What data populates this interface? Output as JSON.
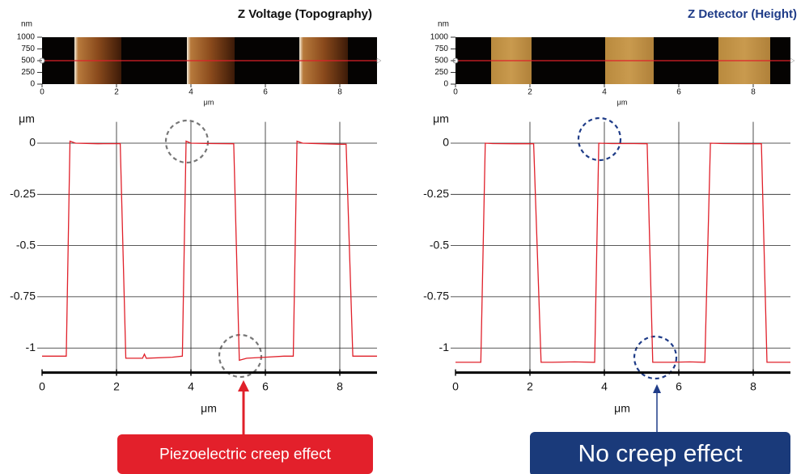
{
  "chart_data": [
    {
      "type": "image",
      "title": "Z Voltage (Topography)",
      "ylabel": "nm",
      "xlabel": "μm",
      "xlim": [
        0,
        9
      ],
      "xticks": [
        0,
        2,
        4,
        6,
        8
      ],
      "ylim": [
        0,
        1000
      ],
      "yticks": [
        0,
        250,
        500,
        750,
        1000
      ]
    },
    {
      "type": "line",
      "ylabel": "μm",
      "xlabel": "μm",
      "color": "#e0202a",
      "grid": true,
      "xlim": [
        0,
        9
      ],
      "xticks": [
        0,
        2,
        4,
        6,
        8
      ],
      "ylim": [
        -1.12,
        0.12
      ],
      "yticks": [
        0,
        -0.25,
        -0.5,
        -0.75,
        -1
      ],
      "x": [
        0,
        0.65,
        0.75,
        0.9,
        1.5,
        2.1,
        2.25,
        2.4,
        2.7,
        2.75,
        2.8,
        3.5,
        3.77,
        3.87,
        4.0,
        4.6,
        5.15,
        5.3,
        5.5,
        6.0,
        6.5,
        6.75,
        6.85,
        7.0,
        8.0,
        8.17,
        8.35,
        8.6,
        9
      ],
      "values": [
        -1.04,
        -1.04,
        0.01,
        0.0,
        -0.003,
        -0.002,
        -1.05,
        -1.05,
        -1.05,
        -1.03,
        -1.05,
        -1.045,
        -1.04,
        0.01,
        0.0,
        -0.002,
        -0.003,
        -1.06,
        -1.05,
        -1.045,
        -1.04,
        -1.04,
        0.01,
        0.0,
        -0.005,
        -0.005,
        -1.04,
        -1.04,
        -1.04
      ],
      "annotation": "Piezoelectric creep effect"
    },
    {
      "type": "image",
      "title": "Z Detector (Height)",
      "ylabel": "nm",
      "xlabel": "μm",
      "xlim": [
        0,
        9
      ],
      "xticks": [
        0,
        2,
        4,
        6,
        8
      ],
      "ylim": [
        0,
        1000
      ],
      "yticks": [
        0,
        250,
        500,
        750,
        1000
      ]
    },
    {
      "type": "line",
      "ylabel": "μm",
      "xlabel": "μm",
      "color": "#e0202a",
      "grid": true,
      "xlim": [
        0,
        9
      ],
      "xticks": [
        0,
        2,
        4,
        6,
        8
      ],
      "ylim": [
        -1.12,
        0.12
      ],
      "yticks": [
        0,
        -0.25,
        -0.5,
        -0.75,
        -1
      ],
      "x": [
        0,
        0.68,
        0.8,
        1.0,
        1.6,
        2.1,
        2.3,
        2.6,
        3.2,
        3.74,
        3.85,
        4.2,
        4.8,
        5.15,
        5.3,
        5.8,
        6.3,
        6.7,
        6.85,
        7.2,
        7.8,
        8.22,
        8.37,
        8.8,
        9
      ],
      "values": [
        -1.07,
        -1.07,
        0.0,
        -0.002,
        -0.003,
        -0.003,
        -1.07,
        -1.07,
        -1.068,
        -1.07,
        0.0,
        -0.002,
        -0.002,
        -0.003,
        -1.07,
        -1.07,
        -1.068,
        -1.07,
        0.0,
        -0.002,
        -0.003,
        -0.003,
        -1.07,
        -1.07,
        -1.07
      ],
      "annotation": "No creep effect"
    }
  ]
}
